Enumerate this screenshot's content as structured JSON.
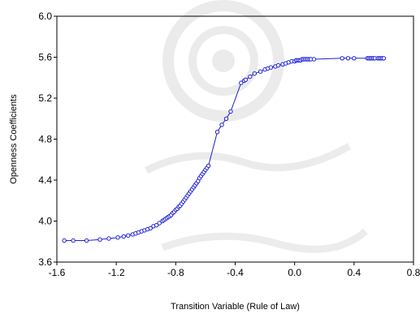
{
  "chart_data": {
    "type": "line",
    "title": "",
    "xlabel": "Transition Variable (Rule of Law)",
    "ylabel": "Openness Coefficients",
    "xlim": [
      -1.6,
      0.8
    ],
    "ylim": [
      3.6,
      6.0
    ],
    "x_ticks": [
      "-1.6",
      "-1.2",
      "-0.8",
      "-0.4",
      "0.0",
      "0.4",
      "0.8"
    ],
    "y_ticks": [
      "3.6",
      "4.0",
      "4.4",
      "4.8",
      "5.2",
      "5.6",
      "6.0"
    ],
    "grid": false,
    "legend": "none",
    "series_color": "#1f1fd6",
    "marker": "hollow-circle",
    "series": [
      {
        "x": [
          -1.55,
          -1.49,
          -1.4,
          -1.31,
          -1.25,
          -1.19,
          -1.15,
          -1.12,
          -1.09,
          -1.07,
          -1.05,
          -1.03,
          -1.01,
          -0.99,
          -0.97,
          -0.95,
          -0.93,
          -0.91,
          -0.89,
          -0.88,
          -0.87,
          -0.86,
          -0.85,
          -0.84,
          -0.83,
          -0.82,
          -0.81,
          -0.8,
          -0.79,
          -0.78,
          -0.77,
          -0.76,
          -0.75,
          -0.74,
          -0.73,
          -0.72,
          -0.71,
          -0.7,
          -0.69,
          -0.68,
          -0.67,
          -0.66,
          -0.65,
          -0.64,
          -0.63,
          -0.62,
          -0.61,
          -0.6,
          -0.59,
          -0.58,
          -0.52,
          -0.49,
          -0.46,
          -0.43,
          -0.36,
          -0.34,
          -0.33,
          -0.3,
          -0.27,
          -0.23,
          -0.2,
          -0.18,
          -0.16,
          -0.13,
          -0.11,
          -0.08,
          -0.06,
          -0.04,
          -0.02,
          0.0,
          0.01,
          0.02,
          0.03,
          0.04,
          0.05,
          0.06,
          0.07,
          0.08,
          0.09,
          0.1,
          0.11,
          0.13,
          0.32,
          0.36,
          0.4,
          0.49,
          0.5,
          0.51,
          0.52,
          0.53,
          0.54,
          0.56,
          0.57,
          0.58,
          0.59,
          0.6
        ],
        "y": [
          3.81,
          3.81,
          3.81,
          3.82,
          3.83,
          3.84,
          3.85,
          3.86,
          3.87,
          3.88,
          3.89,
          3.9,
          3.91,
          3.92,
          3.93,
          3.95,
          3.96,
          3.98,
          4.0,
          4.01,
          4.02,
          4.03,
          4.04,
          4.05,
          4.06,
          4.08,
          4.09,
          4.11,
          4.12,
          4.14,
          4.15,
          4.17,
          4.19,
          4.21,
          4.23,
          4.25,
          4.27,
          4.29,
          4.31,
          4.33,
          4.35,
          4.37,
          4.39,
          4.42,
          4.44,
          4.46,
          4.48,
          4.5,
          4.52,
          4.54,
          4.87,
          4.94,
          5.0,
          5.07,
          5.35,
          5.37,
          5.38,
          5.41,
          5.44,
          5.46,
          5.48,
          5.49,
          5.5,
          5.51,
          5.52,
          5.53,
          5.54,
          5.55,
          5.56,
          5.56,
          5.57,
          5.57,
          5.57,
          5.57,
          5.58,
          5.58,
          5.58,
          5.58,
          5.58,
          5.58,
          5.58,
          5.58,
          5.59,
          5.59,
          5.59,
          5.59,
          5.59,
          5.59,
          5.59,
          5.59,
          5.59,
          5.59,
          5.59,
          5.59,
          5.59,
          5.59
        ]
      }
    ]
  }
}
